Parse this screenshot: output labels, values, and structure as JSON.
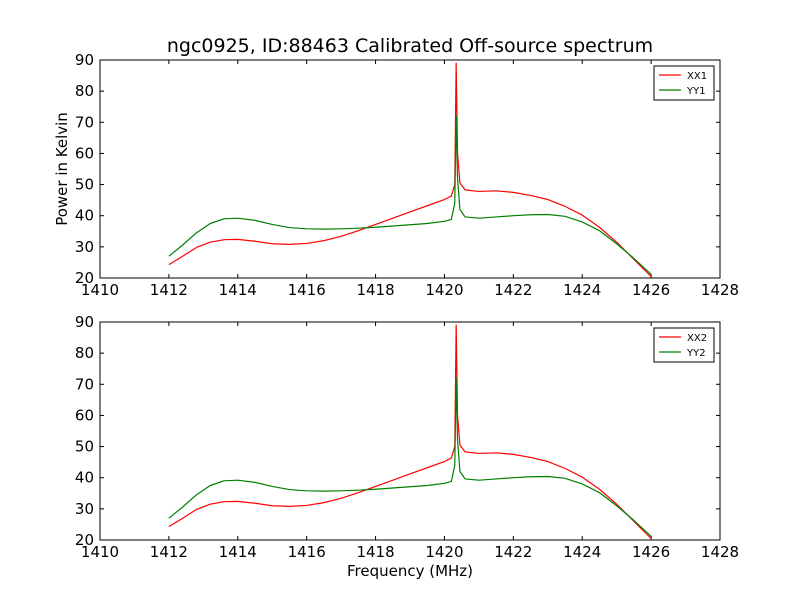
{
  "chart_data": [
    {
      "type": "line",
      "title": "ngc0925, ID:88463 Calibrated Off-source spectrum",
      "xlabel": "",
      "ylabel": "Power in Kelvin",
      "xlim": [
        1410,
        1428
      ],
      "ylim": [
        20,
        90
      ],
      "xticks": [
        "1410",
        "1412",
        "1414",
        "1416",
        "1418",
        "1420",
        "1422",
        "1424",
        "1426",
        "1428"
      ],
      "yticks": [
        "20",
        "30",
        "40",
        "50",
        "60",
        "70",
        "80",
        "90"
      ],
      "grid": false,
      "legend": "top-right",
      "series": [
        {
          "name": "XX1",
          "color": "#ff0000",
          "points": [
            [
              1412.0,
              24.3
            ],
            [
              1412.4,
              27.0
            ],
            [
              1412.8,
              29.8
            ],
            [
              1413.2,
              31.5
            ],
            [
              1413.6,
              32.3
            ],
            [
              1414.0,
              32.4
            ],
            [
              1414.5,
              31.8
            ],
            [
              1415.0,
              31.0
            ],
            [
              1415.5,
              30.8
            ],
            [
              1416.0,
              31.1
            ],
            [
              1416.5,
              32.0
            ],
            [
              1417.0,
              33.4
            ],
            [
              1417.5,
              35.2
            ],
            [
              1418.0,
              37.2
            ],
            [
              1418.5,
              39.2
            ],
            [
              1419.0,
              41.2
            ],
            [
              1419.5,
              43.2
            ],
            [
              1420.0,
              45.2
            ],
            [
              1420.2,
              46.3
            ],
            [
              1420.3,
              50.0
            ],
            [
              1420.34,
              89.0
            ],
            [
              1420.38,
              60.0
            ],
            [
              1420.45,
              50.5
            ],
            [
              1420.6,
              48.3
            ],
            [
              1421.0,
              47.8
            ],
            [
              1421.5,
              48.0
            ],
            [
              1422.0,
              47.5
            ],
            [
              1422.5,
              46.5
            ],
            [
              1423.0,
              45.2
            ],
            [
              1423.5,
              43.0
            ],
            [
              1424.0,
              40.2
            ],
            [
              1424.5,
              36.3
            ],
            [
              1425.0,
              31.5
            ],
            [
              1425.5,
              26.0
            ],
            [
              1426.0,
              20.5
            ]
          ]
        },
        {
          "name": "YY1",
          "color": "#008000",
          "points": [
            [
              1412.0,
              27.0
            ],
            [
              1412.4,
              30.6
            ],
            [
              1412.8,
              34.5
            ],
            [
              1413.2,
              37.5
            ],
            [
              1413.6,
              39.0
            ],
            [
              1414.0,
              39.2
            ],
            [
              1414.5,
              38.5
            ],
            [
              1415.0,
              37.2
            ],
            [
              1415.5,
              36.2
            ],
            [
              1416.0,
              35.8
            ],
            [
              1416.5,
              35.7
            ],
            [
              1417.0,
              35.8
            ],
            [
              1417.5,
              36.0
            ],
            [
              1418.0,
              36.3
            ],
            [
              1418.5,
              36.7
            ],
            [
              1419.0,
              37.1
            ],
            [
              1419.5,
              37.5
            ],
            [
              1420.0,
              38.2
            ],
            [
              1420.2,
              38.8
            ],
            [
              1420.3,
              44.0
            ],
            [
              1420.34,
              72.0
            ],
            [
              1420.38,
              52.0
            ],
            [
              1420.45,
              42.0
            ],
            [
              1420.6,
              39.6
            ],
            [
              1421.0,
              39.2
            ],
            [
              1421.5,
              39.6
            ],
            [
              1422.0,
              40.0
            ],
            [
              1422.5,
              40.3
            ],
            [
              1423.0,
              40.4
            ],
            [
              1423.5,
              39.8
            ],
            [
              1424.0,
              38.0
            ],
            [
              1424.5,
              35.2
            ],
            [
              1425.0,
              31.0
            ],
            [
              1425.5,
              26.3
            ],
            [
              1426.0,
              21.2
            ]
          ]
        }
      ]
    },
    {
      "type": "line",
      "title": "",
      "xlabel": "Frequency (MHz)",
      "ylabel": "",
      "xlim": [
        1410,
        1428
      ],
      "ylim": [
        20,
        90
      ],
      "xticks": [
        "1410",
        "1412",
        "1414",
        "1416",
        "1418",
        "1420",
        "1422",
        "1424",
        "1426",
        "1428"
      ],
      "yticks": [
        "20",
        "30",
        "40",
        "50",
        "60",
        "70",
        "80",
        "90"
      ],
      "grid": false,
      "legend": "top-right",
      "series": [
        {
          "name": "XX2",
          "color": "#ff0000",
          "points": [
            [
              1412.0,
              24.3
            ],
            [
              1412.4,
              27.0
            ],
            [
              1412.8,
              29.8
            ],
            [
              1413.2,
              31.5
            ],
            [
              1413.6,
              32.3
            ],
            [
              1414.0,
              32.4
            ],
            [
              1414.5,
              31.8
            ],
            [
              1415.0,
              31.0
            ],
            [
              1415.5,
              30.8
            ],
            [
              1416.0,
              31.1
            ],
            [
              1416.5,
              32.0
            ],
            [
              1417.0,
              33.4
            ],
            [
              1417.5,
              35.2
            ],
            [
              1418.0,
              37.2
            ],
            [
              1418.5,
              39.2
            ],
            [
              1419.0,
              41.2
            ],
            [
              1419.5,
              43.2
            ],
            [
              1420.0,
              45.2
            ],
            [
              1420.2,
              46.3
            ],
            [
              1420.3,
              50.0
            ],
            [
              1420.34,
              89.0
            ],
            [
              1420.38,
              60.0
            ],
            [
              1420.45,
              50.5
            ],
            [
              1420.6,
              48.3
            ],
            [
              1421.0,
              47.8
            ],
            [
              1421.5,
              48.0
            ],
            [
              1422.0,
              47.5
            ],
            [
              1422.5,
              46.5
            ],
            [
              1423.0,
              45.2
            ],
            [
              1423.5,
              43.0
            ],
            [
              1424.0,
              40.2
            ],
            [
              1424.5,
              36.3
            ],
            [
              1425.0,
              31.5
            ],
            [
              1425.5,
              26.0
            ],
            [
              1426.0,
              20.5
            ]
          ]
        },
        {
          "name": "YY2",
          "color": "#008000",
          "points": [
            [
              1412.0,
              27.0
            ],
            [
              1412.4,
              30.6
            ],
            [
              1412.8,
              34.5
            ],
            [
              1413.2,
              37.5
            ],
            [
              1413.6,
              39.0
            ],
            [
              1414.0,
              39.2
            ],
            [
              1414.5,
              38.5
            ],
            [
              1415.0,
              37.2
            ],
            [
              1415.5,
              36.2
            ],
            [
              1416.0,
              35.8
            ],
            [
              1416.5,
              35.7
            ],
            [
              1417.0,
              35.8
            ],
            [
              1417.5,
              36.0
            ],
            [
              1418.0,
              36.3
            ],
            [
              1418.5,
              36.7
            ],
            [
              1419.0,
              37.1
            ],
            [
              1419.5,
              37.5
            ],
            [
              1420.0,
              38.2
            ],
            [
              1420.2,
              38.8
            ],
            [
              1420.3,
              44.0
            ],
            [
              1420.34,
              72.0
            ],
            [
              1420.38,
              52.0
            ],
            [
              1420.45,
              42.0
            ],
            [
              1420.6,
              39.6
            ],
            [
              1421.0,
              39.2
            ],
            [
              1421.5,
              39.6
            ],
            [
              1422.0,
              40.0
            ],
            [
              1422.5,
              40.3
            ],
            [
              1423.0,
              40.4
            ],
            [
              1423.5,
              39.8
            ],
            [
              1424.0,
              38.0
            ],
            [
              1424.5,
              35.2
            ],
            [
              1425.0,
              31.0
            ],
            [
              1425.5,
              26.3
            ],
            [
              1426.0,
              21.2
            ]
          ]
        }
      ]
    }
  ]
}
